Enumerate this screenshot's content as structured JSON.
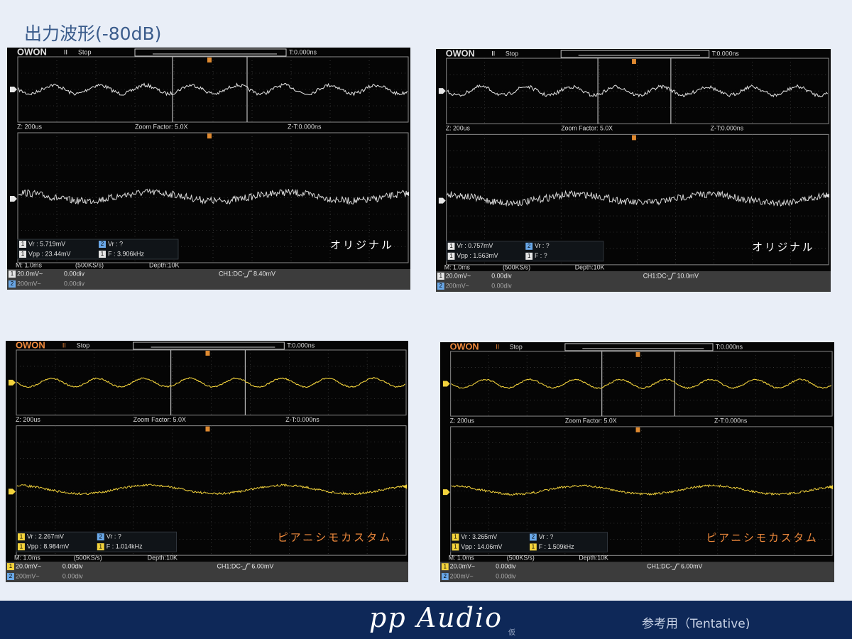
{
  "title": "出力波形(-80dB)",
  "scopes": [
    {
      "brand": "OWON",
      "run": "II",
      "state": "Stop",
      "trigger_time": "T:0.000ns",
      "zoom": "Z: 200us",
      "zoom_factor": "Zoom Factor: 5.0X",
      "zoom_t": "Z-T:0.000ns",
      "measurements": [
        {
          "ch": "1",
          "text": "Vr : 5.719mV"
        },
        {
          "ch": "2",
          "text": "Vr :    ?"
        },
        {
          "ch": "1",
          "text": "Vpp : 23.44mV"
        },
        {
          "ch": "1",
          "text": "F : 3.906kHz"
        }
      ],
      "label": "オリジナル",
      "timebase": "M: 1.0ms",
      "sample": "(500KS/s)",
      "depth": "Depth:10K",
      "channels": [
        {
          "num": "1",
          "scale": "20.0mV~",
          "pos": "0.00div"
        },
        {
          "num": "2",
          "scale": "200mV~",
          "pos": "0.00div"
        }
      ],
      "trigger_source": "CH1:DC-",
      "trigger_level": "8.40mV",
      "trace_color": "#d8d8d8",
      "badge_color": "#e6e6e6",
      "label_color": "#ffffff"
    },
    {
      "brand": "OWON",
      "run": "II",
      "state": "Stop",
      "trigger_time": "T:0.000ns",
      "zoom": "Z: 200us",
      "zoom_factor": "Zoom Factor: 5.0X",
      "zoom_t": "Z-T:0.000ns",
      "measurements": [
        {
          "ch": "1",
          "text": "Vr : 0.757mV"
        },
        {
          "ch": "2",
          "text": "Vr :    ?"
        },
        {
          "ch": "1",
          "text": "Vpp : 1.563mV"
        },
        {
          "ch": "1",
          "text": "F :   ?"
        }
      ],
      "label": "オリジナル",
      "timebase": "M: 1.0ms",
      "sample": "(500KS/s)",
      "depth": "Depth:10K",
      "channels": [
        {
          "num": "1",
          "scale": "20.0mV~",
          "pos": "0.00div"
        },
        {
          "num": "2",
          "scale": "200mV~",
          "pos": "0.00div"
        }
      ],
      "trigger_source": "CH1:DC-",
      "trigger_level": "10.0mV",
      "trace_color": "#d8d8d8",
      "badge_color": "#e6e6e6",
      "label_color": "#ffffff"
    },
    {
      "brand": "OWON",
      "run": "II",
      "state": "Stop",
      "trigger_time": "T:0.000ns",
      "zoom": "Z: 200us",
      "zoom_factor": "Zoom Factor: 5.0X",
      "zoom_t": "Z-T:0.000ns",
      "measurements": [
        {
          "ch": "1",
          "text": "Vr : 2.267mV"
        },
        {
          "ch": "2",
          "text": "Vr :    ?"
        },
        {
          "ch": "1",
          "text": "Vpp : 8.984mV"
        },
        {
          "ch": "1",
          "text": "F : 1.014kHz"
        }
      ],
      "label": "ピアニシモカスタム",
      "timebase": "M: 1.0ms",
      "sample": "(500KS/s)",
      "depth": "Depth:10K",
      "channels": [
        {
          "num": "1",
          "scale": "20.0mV~",
          "pos": "0.00div"
        },
        {
          "num": "2",
          "scale": "200mV~",
          "pos": "0.00div"
        }
      ],
      "trigger_source": "CH1:DC-",
      "trigger_level": "6.00mV",
      "trace_color": "#f2d23c",
      "badge_color": "#f2d23c",
      "label_color": "#f08a3c"
    },
    {
      "brand": "OWON",
      "run": "II",
      "state": "Stop",
      "trigger_time": "T:0.000ns",
      "zoom": "Z: 200us",
      "zoom_factor": "Zoom Factor: 5.0X",
      "zoom_t": "Z-T:0.000ns",
      "measurements": [
        {
          "ch": "1",
          "text": "Vr : 3.265mV"
        },
        {
          "ch": "2",
          "text": "Vr :    ?"
        },
        {
          "ch": "1",
          "text": "Vpp : 14.06mV"
        },
        {
          "ch": "1",
          "text": "F : 1.509kHz"
        }
      ],
      "label": "ピアニシモカスタム",
      "timebase": "M: 1.0ms",
      "sample": "(500KS/s)",
      "depth": "Depth:10K",
      "channels": [
        {
          "num": "1",
          "scale": "20.0mV~",
          "pos": "0.00div"
        },
        {
          "num": "2",
          "scale": "200mV~",
          "pos": "0.00div"
        }
      ],
      "trigger_source": "CH1:DC-",
      "trigger_level": "6.00mV",
      "trace_color": "#f2d23c",
      "badge_color": "#f2d23c",
      "label_color": "#f08a3c"
    }
  ],
  "footer": {
    "logo": "pp Audio",
    "tag": "仮",
    "note": "参考用（Tentative)"
  }
}
